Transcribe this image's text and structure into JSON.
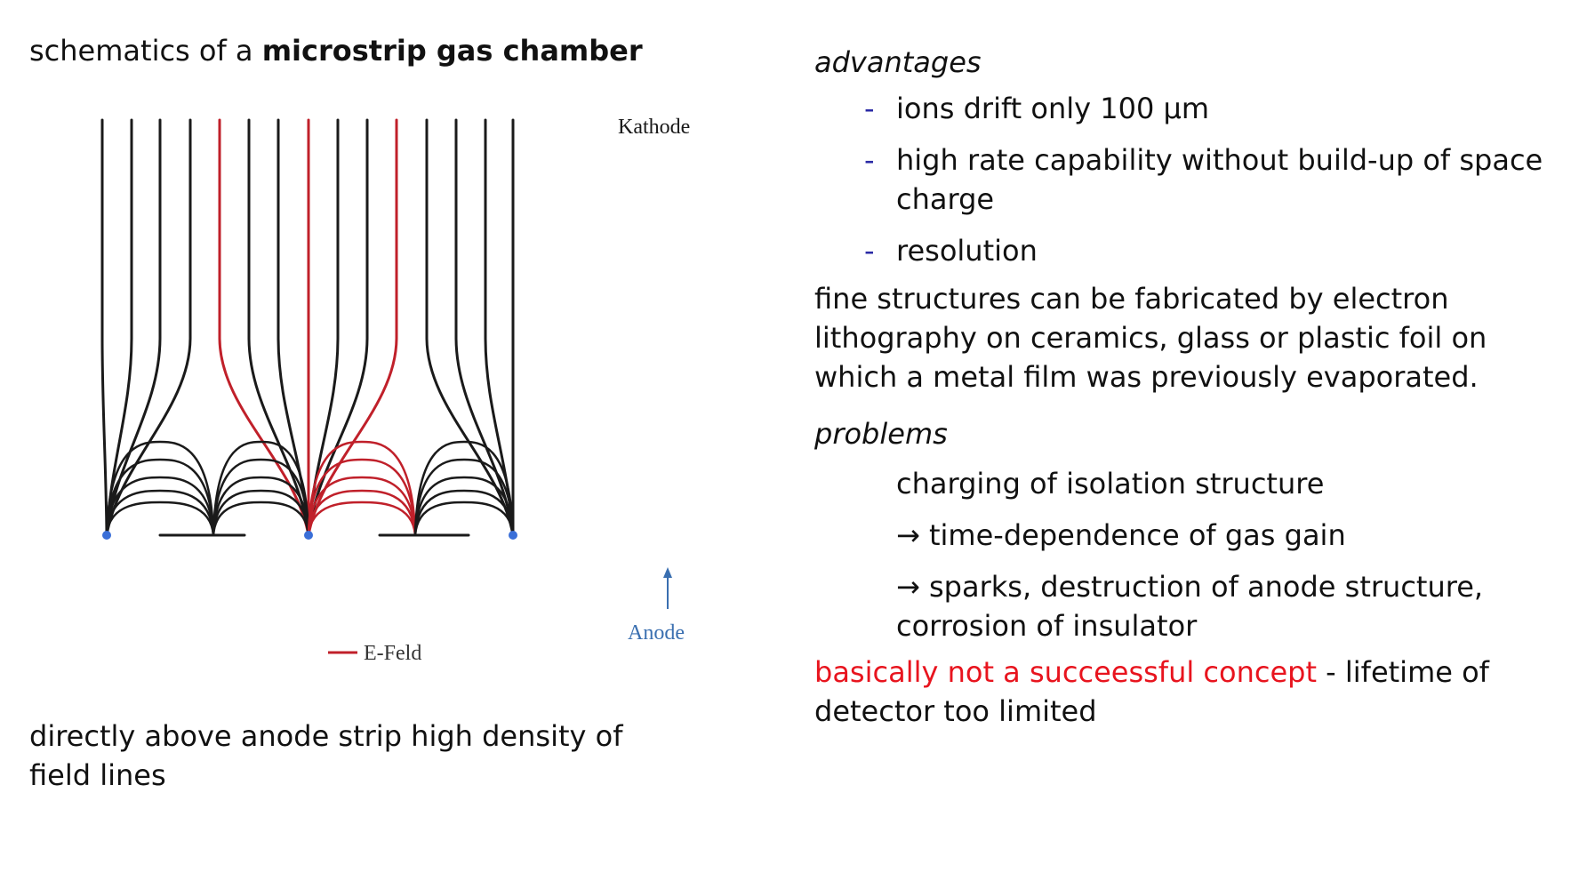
{
  "left": {
    "title_prefix": "schematics of a ",
    "title_bold": "microstrip gas chamber",
    "caption": "directly above anode strip high density of field lines"
  },
  "figure": {
    "kathode_label": "Kathode",
    "anode_label": "Anode",
    "legend_label": "E-Feld",
    "colors": {
      "field_line": "#1a1a1a",
      "efeld": "#c0202a",
      "anode_dot": "#3a6fd8",
      "label": "#3a6fb0"
    }
  },
  "right": {
    "advantages_heading": "advantages",
    "advantages": [
      {
        "dash": "-",
        "text": "ions drift only 100 μm"
      },
      {
        "dash": "-",
        "text": "high rate capability without build-up of space charge"
      },
      {
        "dash": "-",
        "text": "resolution"
      }
    ],
    "paragraph": "fine structures can be fabricated by electron lithography on ceramics, glass or plastic foil on which a metal film was previously evaporated.",
    "problems_heading": "problems",
    "problems": [
      "charging of isolation structure",
      "→ time-dependence of gas gain",
      "→ sparks, destruction of anode structure, corrosion of insulator"
    ],
    "conclusion_red": "basically not a succeessful concept",
    "conclusion_rest": " - lifetime of detector too limited"
  }
}
